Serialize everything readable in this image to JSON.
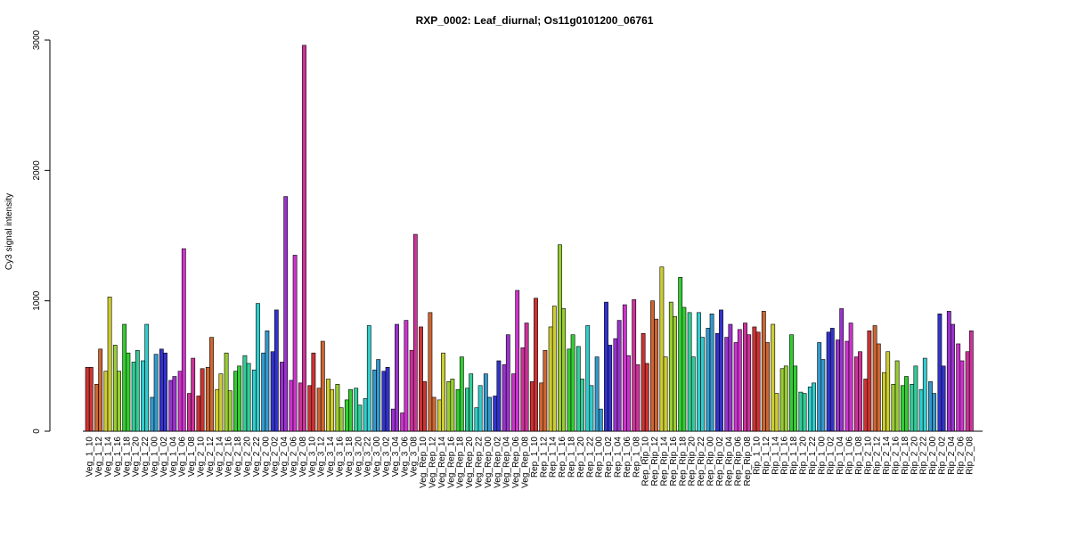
{
  "chart_data": {
    "type": "bar",
    "title": "RXP_0002: Leaf_diurnal; Os11g0101200_06761",
    "xlabel": "",
    "ylabel": "Cy3 signal intensity",
    "ylim": [
      0,
      3000
    ],
    "yticks": [
      0,
      1000,
      2000,
      3000
    ],
    "grid": false,
    "legend": "none",
    "categories": [
      "Veg_1_10",
      "Veg_1_12",
      "Veg_1_14",
      "Veg_1_16",
      "Veg_1_18",
      "Veg_1_20",
      "Veg_1_22",
      "Veg_1_00",
      "Veg_1_02",
      "Veg_1_04",
      "Veg_1_06",
      "Veg_1_08",
      "Veg_2_10",
      "Veg_2_12",
      "Veg_2_14",
      "Veg_2_16",
      "Veg_2_18",
      "Veg_2_20",
      "Veg_2_22",
      "Veg_2_00",
      "Veg_2_02",
      "Veg_2_04",
      "Veg_2_06",
      "Veg_2_08",
      "Veg_3_10",
      "Veg_3_12",
      "Veg_3_14",
      "Veg_3_16",
      "Veg_3_18",
      "Veg_3_20",
      "Veg_3_22",
      "Veg_3_00",
      "Veg_3_02",
      "Veg_3_04",
      "Veg_3_06",
      "Veg_3_08",
      "Veg_Rep_10",
      "Veg_Rep_12",
      "Veg_Rep_14",
      "Veg_Rep_16",
      "Veg_Rep_18",
      "Veg_Rep_20",
      "Veg_Rep_22",
      "Veg_Rep_00",
      "Veg_Rep_02",
      "Veg_Rep_04",
      "Veg_Rep_06",
      "Veg_Rep_08",
      "Rep_1_10",
      "Rep_1_12",
      "Rep_1_14",
      "Rep_1_16",
      "Rep_1_18",
      "Rep_1_20",
      "Rep_1_22",
      "Rep_1_00",
      "Rep_1_02",
      "Rep_1_04",
      "Rep_1_06",
      "Rep_1_08",
      "Rep_Rip_10",
      "Rep_Rip_12",
      "Rep_Rip_14",
      "Rep_Rip_16",
      "Rep_Rip_18",
      "Rep_Rip_20",
      "Rep_Rip_22",
      "Rep_Rip_00",
      "Rep_Rip_02",
      "Rep_Rip_04",
      "Rep_Rip_06",
      "Rep_Rip_08",
      "Rip_1_10",
      "Rip_1_12",
      "Rip_1_14",
      "Rip_1_16",
      "Rip_1_18",
      "Rip_1_20",
      "Rip_1_22",
      "Rip_1_00",
      "Rip_1_02",
      "Rip_1_04",
      "Rip_1_06",
      "Rip_1_08",
      "Rip_2_10",
      "Rip_2_12",
      "Rip_2_14",
      "Rip_2_16",
      "Rip_2_18",
      "Rip_2_20",
      "Rip_2_22",
      "Rip_2_00",
      "Rip_2_02",
      "Rip_2_04",
      "Rip_2_06",
      "Rip_2_08"
    ],
    "replicates": 2,
    "values": [
      [
        490,
        490
      ],
      [
        360,
        630
      ],
      [
        460,
        1030
      ],
      [
        660,
        460
      ],
      [
        820,
        600
      ],
      [
        530,
        620
      ],
      [
        540,
        820
      ],
      [
        260,
        590
      ],
      [
        630,
        600
      ],
      [
        390,
        420
      ],
      [
        460,
        1400
      ],
      [
        290,
        560
      ],
      [
        270,
        480
      ],
      [
        490,
        720
      ],
      [
        320,
        440
      ],
      [
        600,
        310
      ],
      [
        460,
        500
      ],
      [
        580,
        520
      ],
      [
        470,
        980
      ],
      [
        600,
        770
      ],
      [
        610,
        930
      ],
      [
        530,
        1800
      ],
      [
        390,
        1350
      ],
      [
        370,
        2960
      ],
      [
        350,
        600
      ],
      [
        330,
        690
      ],
      [
        400,
        320
      ],
      [
        360,
        180
      ],
      [
        240,
        320
      ],
      [
        330,
        200
      ],
      [
        250,
        810
      ],
      [
        470,
        550
      ],
      [
        460,
        490
      ],
      [
        170,
        820
      ],
      [
        140,
        850
      ],
      [
        620,
        1510
      ],
      [
        800,
        380
      ],
      [
        910,
        260
      ],
      [
        240,
        600
      ],
      [
        380,
        400
      ],
      [
        320,
        570
      ],
      [
        330,
        440
      ],
      [
        180,
        350
      ],
      [
        440,
        260
      ],
      [
        270,
        540
      ],
      [
        510,
        740
      ],
      [
        440,
        1080
      ],
      [
        640,
        830
      ],
      [
        380,
        1020
      ],
      [
        370,
        620
      ],
      [
        800,
        960
      ],
      [
        1430,
        940
      ],
      [
        630,
        740
      ],
      [
        650,
        400
      ],
      [
        810,
        350
      ],
      [
        570,
        170
      ],
      [
        990,
        660
      ],
      [
        710,
        850
      ],
      [
        970,
        580
      ],
      [
        1010,
        510
      ],
      [
        750,
        520
      ],
      [
        1000,
        860
      ],
      [
        1260,
        570
      ],
      [
        990,
        880
      ],
      [
        1180,
        950
      ],
      [
        910,
        570
      ],
      [
        910,
        720
      ],
      [
        790,
        900
      ],
      [
        750,
        930
      ],
      [
        720,
        820
      ],
      [
        680,
        780
      ],
      [
        830,
        740
      ],
      [
        800,
        760
      ],
      [
        920,
        680
      ],
      [
        820,
        290
      ],
      [
        480,
        500
      ],
      [
        740,
        500
      ],
      [
        300,
        290
      ],
      [
        340,
        370
      ],
      [
        680,
        550
      ],
      [
        760,
        790
      ],
      [
        700,
        940
      ],
      [
        690,
        830
      ],
      [
        570,
        610
      ],
      [
        400,
        770
      ],
      [
        810,
        670
      ],
      [
        450,
        610
      ],
      [
        360,
        540
      ],
      [
        350,
        420
      ],
      [
        360,
        500
      ],
      [
        320,
        560
      ],
      [
        380,
        290
      ],
      [
        900,
        500
      ],
      [
        920,
        820
      ],
      [
        670,
        540
      ],
      [
        610,
        770
      ]
    ],
    "colors": [
      "#cc3333",
      "#cc6633",
      "#cccc33",
      "#99cc33",
      "#33cc33",
      "#33cc99",
      "#33cccc",
      "#3399cc",
      "#3333cc",
      "#9933cc",
      "#cc33cc",
      "#cc3399"
    ]
  }
}
